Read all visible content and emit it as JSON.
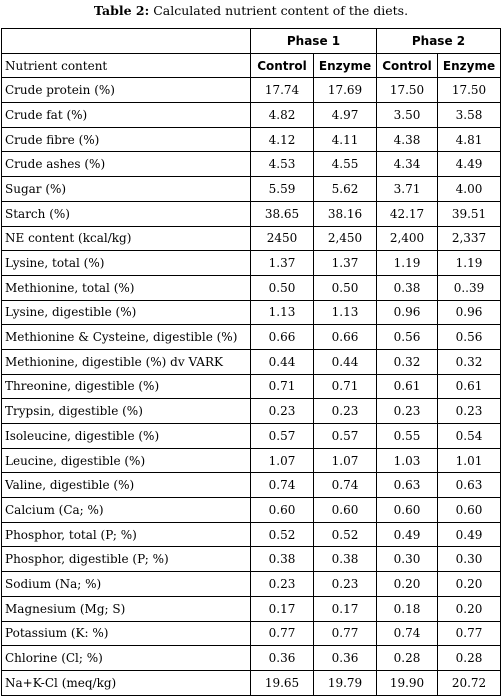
{
  "caption": {
    "label": "Table 2:",
    "text": " Calculated nutrient content of the diets."
  },
  "table": {
    "phase_headers": [
      "Phase 1",
      "Phase 2"
    ],
    "first_column_header": "Nutrient content",
    "sub_headers": [
      "Control",
      "Enzyme",
      "Control",
      "Enzyme"
    ],
    "rows": [
      {
        "name": "Crude protein (%)",
        "values": [
          "17.74",
          "17.69",
          "17.50",
          "17.50"
        ]
      },
      {
        "name": "Crude fat (%)",
        "values": [
          "4.82",
          "4.97",
          "3.50",
          "3.58"
        ]
      },
      {
        "name": "Crude fibre (%)",
        "values": [
          "4.12",
          "4.11",
          "4.38",
          "4.81"
        ]
      },
      {
        "name": "Crude ashes (%)",
        "values": [
          "4.53",
          "4.55",
          "4.34",
          "4.49"
        ]
      },
      {
        "name": "Sugar (%)",
        "values": [
          "5.59",
          "5.62",
          "3.71",
          "4.00"
        ]
      },
      {
        "name": "Starch (%)",
        "values": [
          "38.65",
          "38.16",
          "42.17",
          "39.51"
        ]
      },
      {
        "name": "NE content (kcal/kg)",
        "values": [
          "2450",
          "2,450",
          "2,400",
          "2,337"
        ]
      },
      {
        "name": "Lysine, total (%)",
        "values": [
          "1.37",
          "1.37",
          "1.19",
          "1.19"
        ]
      },
      {
        "name": "Methionine, total (%)",
        "values": [
          "0.50",
          "0.50",
          "0.38",
          "0..39"
        ]
      },
      {
        "name": "Lysine, digestible (%)",
        "values": [
          "1.13",
          "1.13",
          "0.96",
          "0.96"
        ]
      },
      {
        "name": "Methionine & Cysteine, digestible (%)",
        "values": [
          "0.66",
          "0.66",
          "0.56",
          "0.56"
        ]
      },
      {
        "name": "Methionine, digestible (%) dv VARK",
        "values": [
          "0.44",
          "0.44",
          "0.32",
          "0.32"
        ]
      },
      {
        "name": "Threonine, digestible (%)",
        "values": [
          "0.71",
          "0.71",
          "0.61",
          "0.61"
        ]
      },
      {
        "name": "Trypsin, digestible (%)",
        "values": [
          "0.23",
          "0.23",
          "0.23",
          "0.23"
        ]
      },
      {
        "name": "Isoleucine, digestible (%)",
        "values": [
          "0.57",
          "0.57",
          "0.55",
          "0.54"
        ]
      },
      {
        "name": "Leucine, digestible (%)",
        "values": [
          "1.07",
          "1.07",
          "1.03",
          "1.01"
        ]
      },
      {
        "name": "Valine, digestible (%)",
        "values": [
          "0.74",
          "0.74",
          "0.63",
          "0.63"
        ]
      },
      {
        "name": "Calcium (Ca; %)",
        "values": [
          "0.60",
          "0.60",
          "0.60",
          "0.60"
        ]
      },
      {
        "name": "Phosphor, total (P; %)",
        "values": [
          "0.52",
          "0.52",
          "0.49",
          "0.49"
        ]
      },
      {
        "name": "Phosphor, digestible (P; %)",
        "values": [
          "0.38",
          "0.38",
          "0.30",
          "0.30"
        ]
      },
      {
        "name": "Sodium (Na; %)",
        "values": [
          "0.23",
          "0.23",
          "0.20",
          "0.20"
        ]
      },
      {
        "name": "Magnesium (Mg; S)",
        "values": [
          "0.17",
          "0.17",
          "0.18",
          "0.20"
        ]
      },
      {
        "name": "Potassium (K: %)",
        "values": [
          "0.77",
          "0.77",
          "0.74",
          "0.77"
        ]
      },
      {
        "name": "Chlorine (Cl; %)",
        "values": [
          "0.36",
          "0.36",
          "0.28",
          "0.28"
        ]
      },
      {
        "name": "Na+K-Cl (meq/kg)",
        "values": [
          "19.65",
          "19.79",
          "19.90",
          "20.72"
        ]
      }
    ]
  }
}
